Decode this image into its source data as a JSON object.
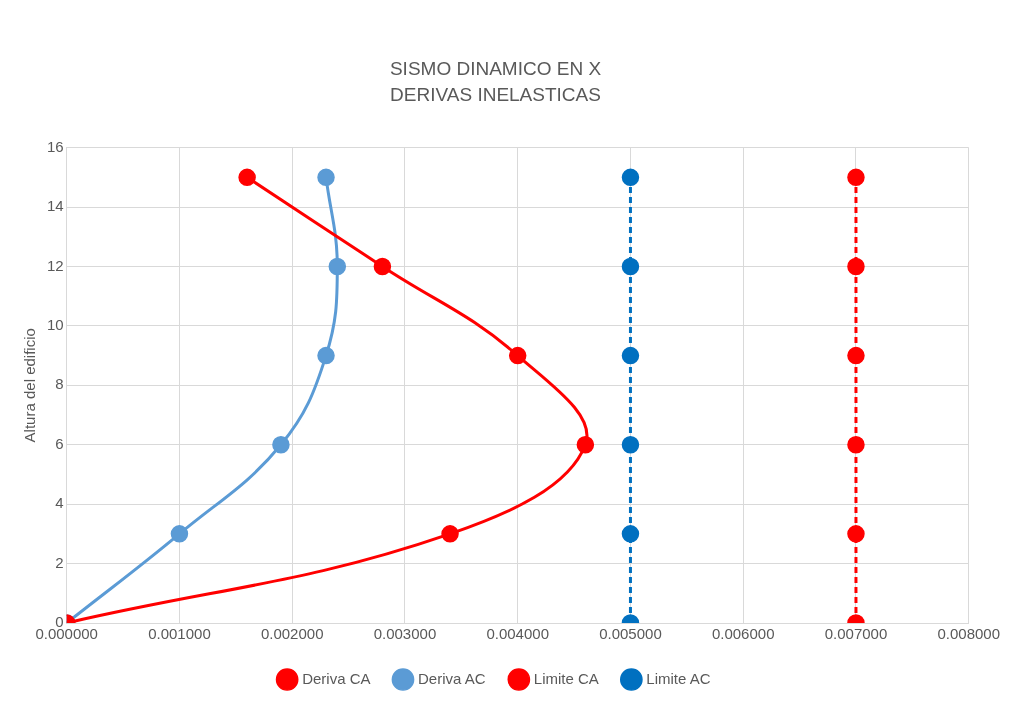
{
  "chart_data": {
    "type": "line",
    "title": "SISMO DINAMICO EN X",
    "subtitle": "DERIVAS INELASTICAS",
    "ylabel": "Altura del edificio",
    "series": [
      {
        "name": "Deriva CA",
        "color": "#ff0000",
        "x": [
          0,
          0.0034,
          0.0046,
          0.004,
          0.0028,
          0.0016
        ],
        "values": [
          0,
          3,
          6,
          9,
          12,
          15
        ],
        "line_style": "solid"
      },
      {
        "name": "Deriva AC",
        "color": "#5b9bd5",
        "x": [
          0,
          0.001,
          0.0019,
          0.0023,
          0.0024,
          0.0023
        ],
        "values": [
          0,
          3,
          6,
          9,
          12,
          15
        ],
        "line_style": "solid"
      },
      {
        "name": "Limite CA",
        "color": "#ff0000",
        "x": [
          0.007,
          0.007,
          0.007,
          0.007,
          0.007,
          0.007
        ],
        "values": [
          0,
          3,
          6,
          9,
          12,
          15
        ],
        "line_style": "dashed"
      },
      {
        "name": "Limite AC",
        "color": "#0070c0",
        "x": [
          0.005,
          0.005,
          0.005,
          0.005,
          0.005,
          0.005
        ],
        "values": [
          0,
          3,
          6,
          9,
          12,
          15
        ],
        "line_style": "dashed"
      }
    ],
    "xlim": [
      0,
      0.008
    ],
    "xticks": [
      {
        "value": 0,
        "label": "0.000000"
      },
      {
        "value": 0.001,
        "label": "0.001000"
      },
      {
        "value": 0.002,
        "label": "0.002000"
      },
      {
        "value": 0.003,
        "label": "0.003000"
      },
      {
        "value": 0.004,
        "label": "0.004000"
      },
      {
        "value": 0.005,
        "label": "0.005000"
      },
      {
        "value": 0.006,
        "label": "0.006000"
      },
      {
        "value": 0.007,
        "label": "0.007000"
      },
      {
        "value": 0.008,
        "label": "0.008000"
      }
    ],
    "ylim": [
      0,
      16
    ],
    "yticks": [
      0,
      2,
      4,
      6,
      8,
      10,
      12,
      14,
      16
    ],
    "grid": true,
    "legend": "bottom",
    "marker": "circle"
  }
}
